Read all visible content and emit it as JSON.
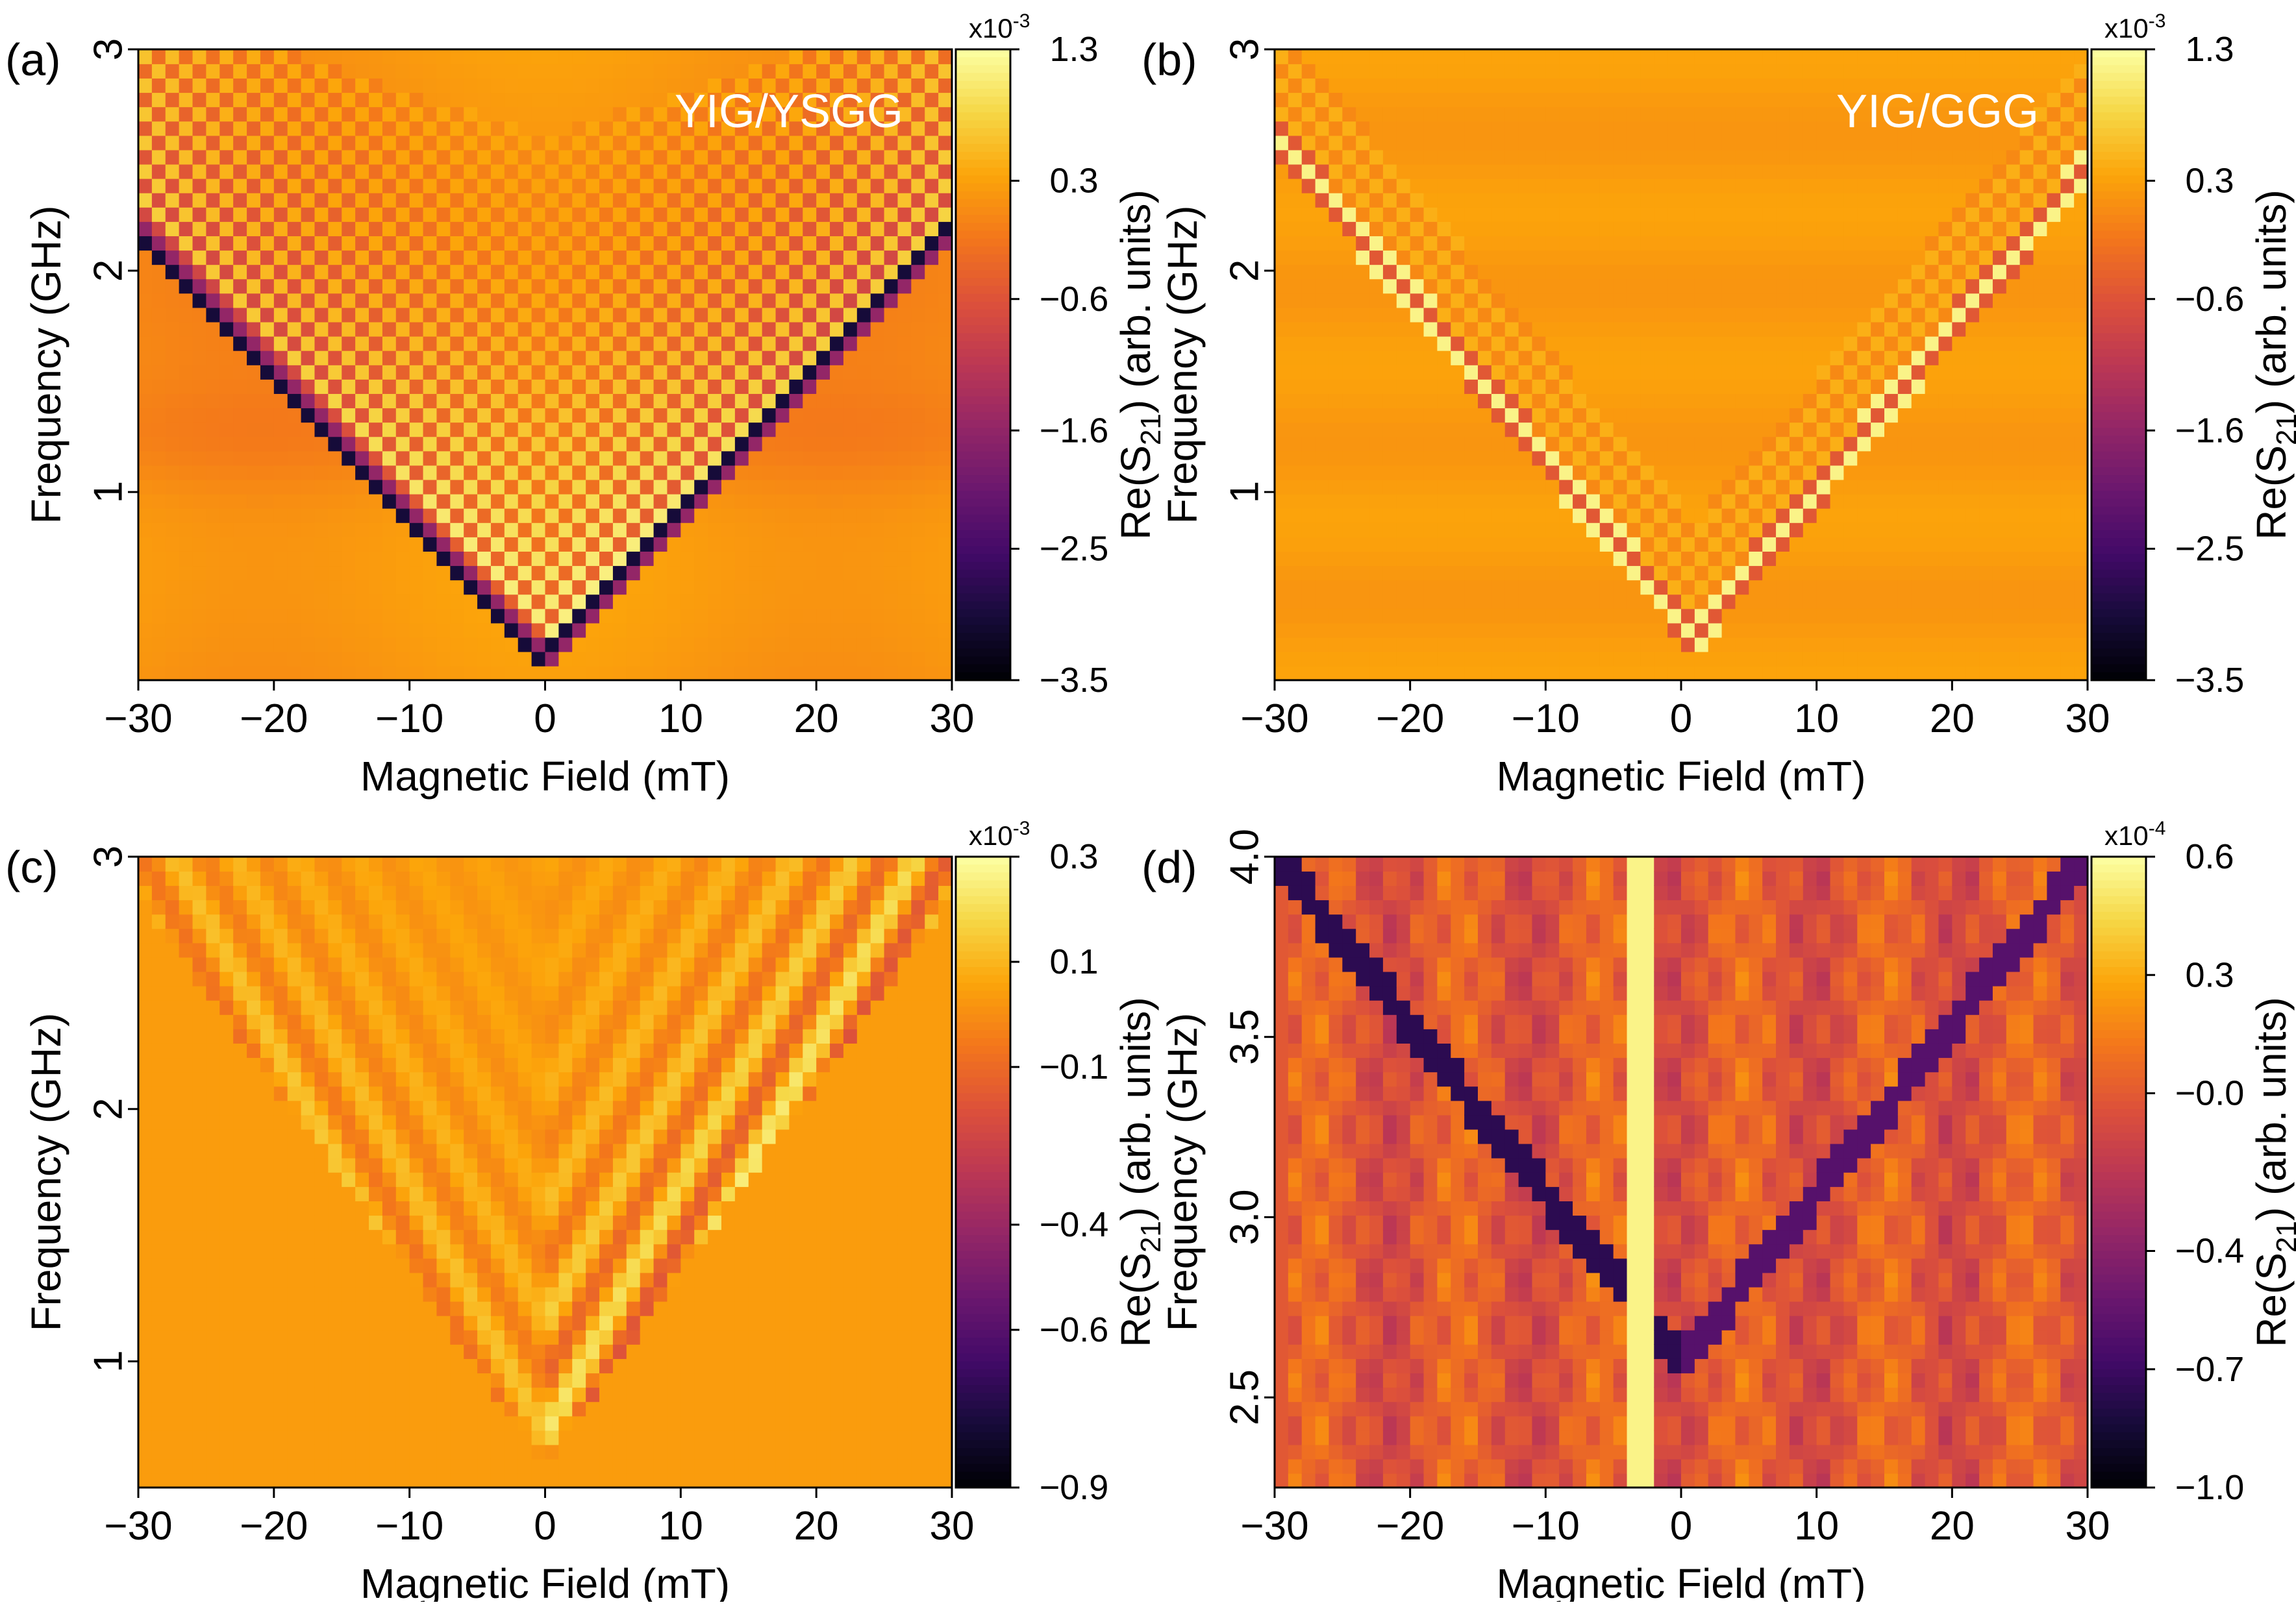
{
  "chart_data": [
    {
      "panel_label": "(a)",
      "type": "heatmap",
      "annotation": "YIG/YSGG",
      "xlabel": "Magnetic Field (mT)",
      "ylabel": "Frequency (GHz)",
      "xlim": [
        -30,
        30
      ],
      "ylim": [
        0.15,
        3.0
      ],
      "xticks": [
        "−30",
        "−20",
        "−10",
        "0",
        "10",
        "20",
        "30"
      ],
      "xtick_values": [
        -30,
        -20,
        -10,
        0,
        10,
        20,
        30
      ],
      "yticks": [
        "1",
        "2",
        "3"
      ],
      "ytick_values": [
        1,
        2,
        3
      ],
      "colorbar": {
        "label_main": "Re(S",
        "label_sub": "21",
        "label_tail": ") (arb. units)",
        "exponent_base": "x10",
        "exponent_power": "-3",
        "ticks": [
          "1.3",
          "0.3",
          "−0.6",
          "−1.6",
          "−2.5",
          "−3.5"
        ],
        "tick_values": [
          1.3,
          0.3,
          -0.6,
          -1.6,
          -2.5,
          -3.5
        ],
        "range": [
          -3.5,
          1.3
        ]
      },
      "features": {
        "description_only_for_render": true,
        "v_min_frequency": 0.2,
        "v_edge_frequency_at_30mT": 2.15,
        "checkerboard_sign": "negative"
      }
    },
    {
      "panel_label": "(b)",
      "type": "heatmap",
      "annotation": "YIG/GGG",
      "xlabel": "Magnetic Field (mT)",
      "ylabel": "Frequency (GHz)",
      "xlim": [
        -30,
        30
      ],
      "ylim": [
        0.15,
        3.0
      ],
      "xticks": [
        "−30",
        "−20",
        "−10",
        "0",
        "10",
        "20",
        "30"
      ],
      "xtick_values": [
        -30,
        -20,
        -10,
        0,
        10,
        20,
        30
      ],
      "yticks": [
        "1",
        "2",
        "3"
      ],
      "ytick_values": [
        1,
        2,
        3
      ],
      "colorbar": {
        "label_main": "Re(S",
        "label_sub": "21",
        "label_tail": ") (arb. units)",
        "exponent_base": "x10",
        "exponent_power": "-3",
        "ticks": [
          "1.3",
          "0.3",
          "−0.6",
          "−1.6",
          "−2.5",
          "−3.5"
        ],
        "tick_values": [
          1.3,
          0.3,
          -0.6,
          -1.6,
          -2.5,
          -3.5
        ],
        "range": [
          -3.5,
          1.3
        ]
      }
    },
    {
      "panel_label": "(c)",
      "type": "heatmap",
      "xlabel": "Magnetic Field (mT)",
      "ylabel": "Frequency (GHz)",
      "xlim": [
        -30,
        30
      ],
      "ylim": [
        0.5,
        3.0
      ],
      "xticks": [
        "−30",
        "−20",
        "−10",
        "0",
        "10",
        "20",
        "30"
      ],
      "xtick_values": [
        -30,
        -20,
        -10,
        0,
        10,
        20,
        30
      ],
      "yticks": [
        "1",
        "2",
        "3"
      ],
      "ytick_values": [
        1,
        2,
        3
      ],
      "colorbar": {
        "label_main": "Re(S",
        "label_sub": "21",
        "label_tail": ") (arb. units)",
        "exponent_base": "x10",
        "exponent_power": "-3",
        "ticks": [
          "0.3",
          "0.1",
          "−0.1",
          "−0.4",
          "−0.6",
          "−0.9"
        ],
        "tick_values": [
          0.3,
          0.1,
          -0.1,
          -0.4,
          -0.6,
          -0.9
        ],
        "range": [
          -0.9,
          0.3
        ]
      }
    },
    {
      "panel_label": "(d)",
      "type": "heatmap",
      "xlabel": "Magnetic Field (mT)",
      "ylabel": "Frequency (GHz)",
      "xlim": [
        -30,
        30
      ],
      "ylim": [
        2.25,
        4.0
      ],
      "xticks": [
        "−30",
        "−20",
        "−10",
        "0",
        "10",
        "20",
        "30"
      ],
      "xtick_values": [
        -30,
        -20,
        -10,
        0,
        10,
        20,
        30
      ],
      "yticks": [
        "2.5",
        "3.0",
        "3.5",
        "4.0"
      ],
      "ytick_values": [
        2.5,
        3.0,
        3.5,
        4.0
      ],
      "colorbar": {
        "label_main": "Re(S",
        "label_sub": "21",
        "label_tail": ") (arb. units)",
        "exponent_base": "x10",
        "exponent_power": "-4",
        "ticks": [
          "0.6",
          "0.3",
          "−0.0",
          "−0.4",
          "−0.7",
          "−1.0"
        ],
        "tick_values": [
          0.6,
          0.3,
          0.0,
          -0.4,
          -0.7,
          -1.0
        ],
        "range": [
          -1.0,
          0.6
        ]
      }
    }
  ]
}
